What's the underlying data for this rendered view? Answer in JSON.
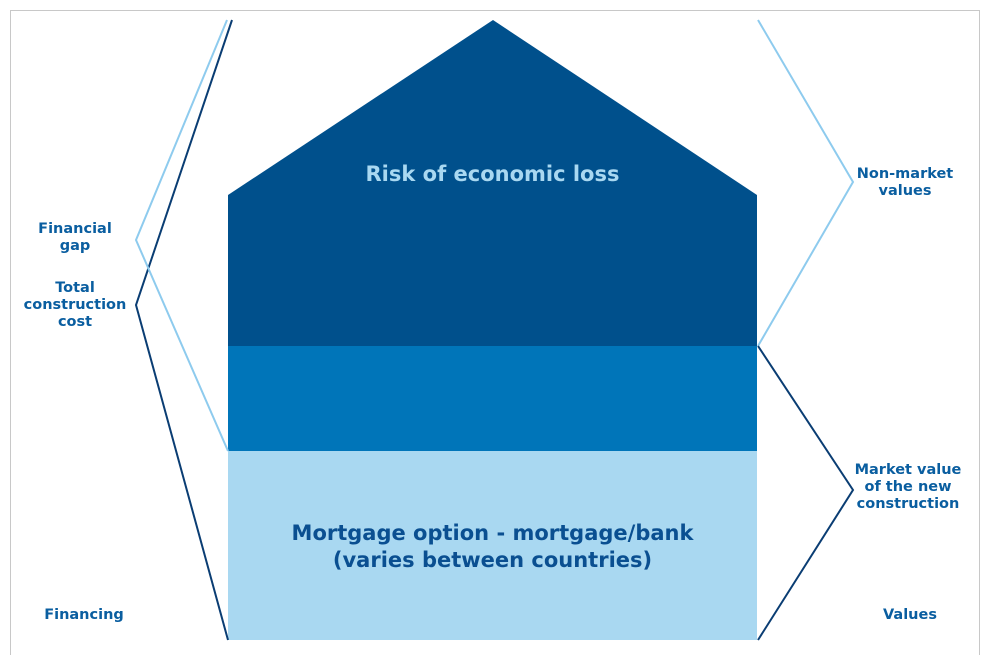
{
  "roof": {
    "label": "Risk of economic loss"
  },
  "base": {
    "line1": "Mortgage option - mortgage/bank",
    "line2": "(varies between countries)"
  },
  "left": {
    "financial_gap": [
      "Financial",
      "gap"
    ],
    "total_cost": [
      "Total",
      "construction",
      "cost"
    ],
    "footer": "Financing"
  },
  "right": {
    "non_market": [
      "Non-market",
      "values"
    ],
    "market_value": [
      "Market value",
      "of the new",
      "construction"
    ],
    "footer": "Values"
  },
  "colors": {
    "dark_blue": "#00508c",
    "mid_blue": "#0075b9",
    "light_blue": "#a9d8f1",
    "bracket_dark": "#0a3d73",
    "bracket_light": "#8ecbee",
    "text_blue": "#0a5ea0"
  }
}
